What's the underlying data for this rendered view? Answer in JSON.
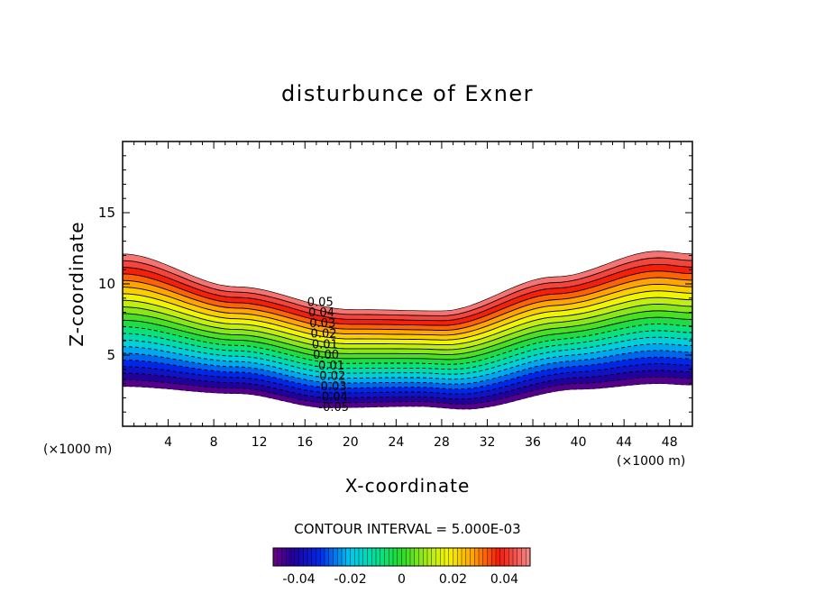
{
  "chart_data": {
    "type": "contour",
    "title": "disturbunce of Exner",
    "xlabel": "X-coordinate",
    "ylabel": "Z-coordinate",
    "x_unit_left": "(×1000 m)",
    "x_unit_right": "(×1000 m)",
    "xlim": [
      0,
      50
    ],
    "ylim": [
      0,
      20
    ],
    "x_ticks": [
      4,
      8,
      12,
      16,
      20,
      24,
      28,
      32,
      36,
      40,
      44,
      48
    ],
    "y_ticks": [
      5,
      10,
      15
    ],
    "contour_interval_text": "CONTOUR INTERVAL = 5.000E-03",
    "contour_interval": 0.005,
    "level_range": [
      -0.05,
      0.05
    ],
    "contour_labels": [
      "0.05",
      "0.04",
      "0.03",
      "0.02",
      "0.01",
      "0.00",
      "-0.01",
      "-0.02",
      "-0.03",
      "-0.04",
      "-0.05"
    ],
    "colorbar_ticks": [
      "-0.04",
      "-0.02",
      "0",
      "0.02",
      "0.04"
    ],
    "colorbar_tick_values": [
      -0.04,
      -0.02,
      0,
      0.02,
      0.04
    ],
    "top_surface_z": [
      [
        0,
        12.1
      ],
      [
        10,
        9.8
      ],
      [
        20,
        8.2
      ],
      [
        28,
        8.1
      ],
      [
        38,
        10.5
      ],
      [
        47,
        12.3
      ],
      [
        50,
        12.1
      ]
    ],
    "bottom_surface_z": [
      [
        0,
        2.8
      ],
      [
        10,
        2.3
      ],
      [
        18,
        1.3
      ],
      [
        26,
        1.4
      ],
      [
        30,
        1.2
      ],
      [
        40,
        2.6
      ],
      [
        47,
        3.0
      ],
      [
        50,
        2.9
      ]
    ]
  }
}
